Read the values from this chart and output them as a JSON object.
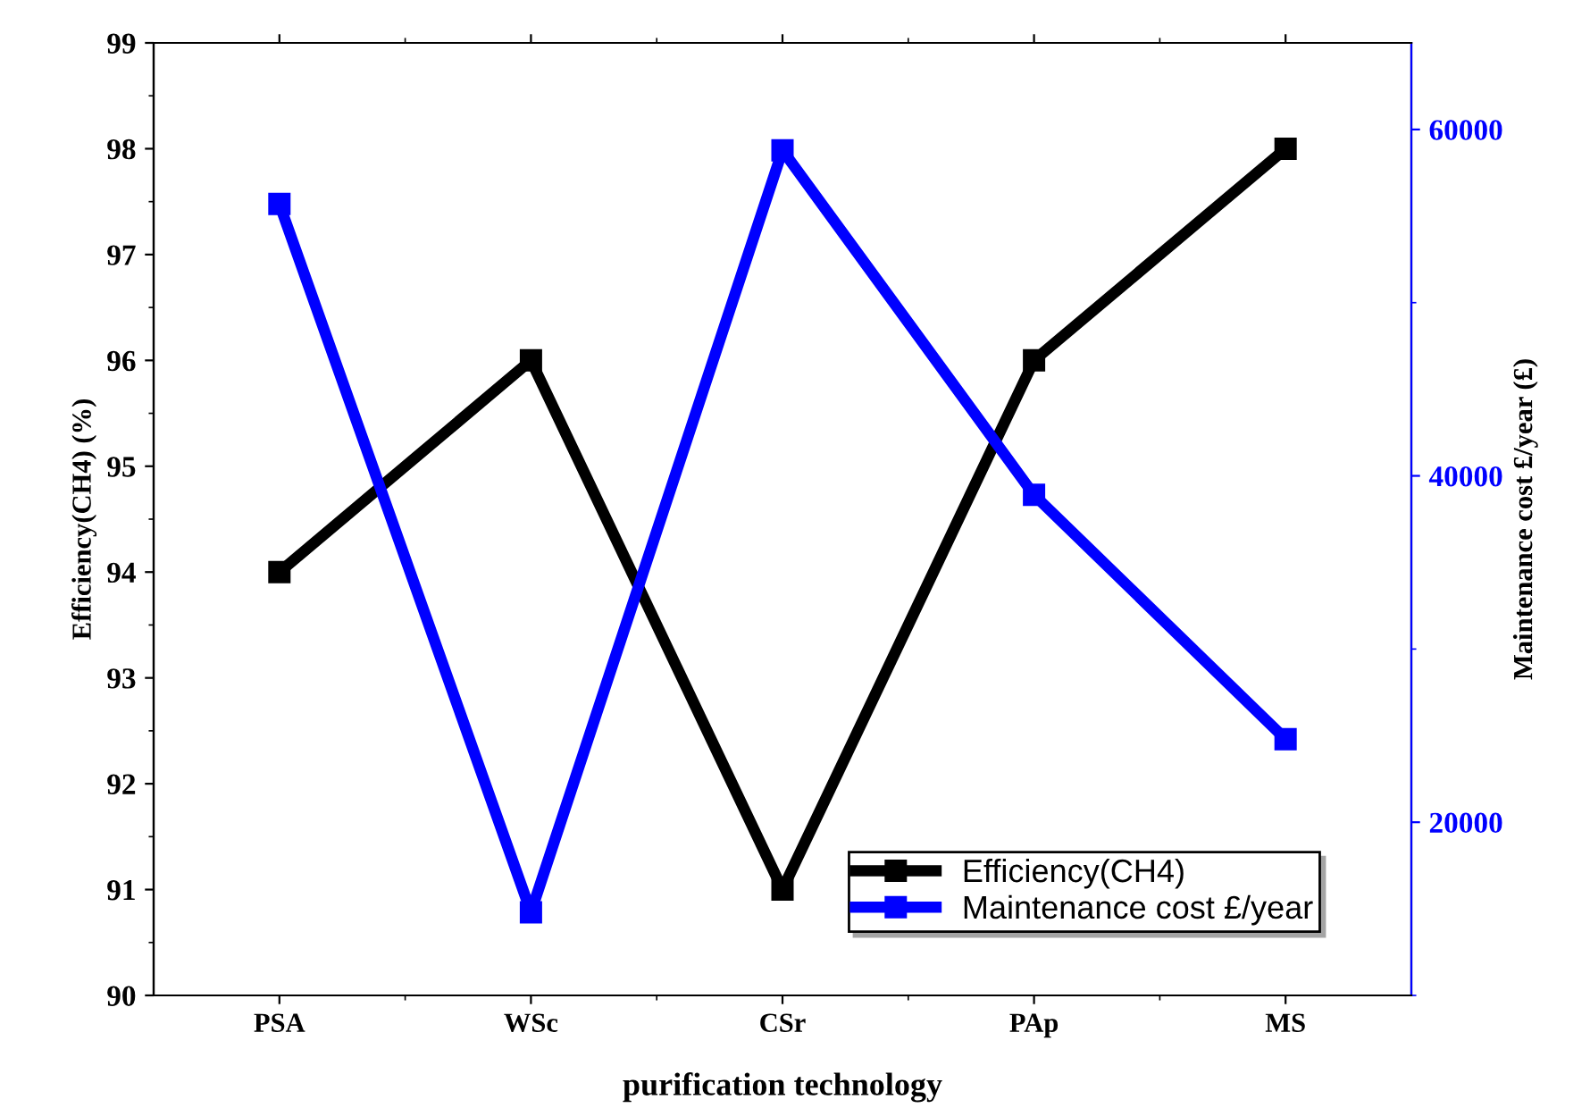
{
  "chart_data": {
    "type": "line",
    "xlabel": "purification technology",
    "ylabel": "Efficiency(CH4) (%)",
    "y2label": "Maintenance cost £/year (£)",
    "categories": [
      "PSA",
      "WSc",
      "CSr",
      "PAp",
      "MS"
    ],
    "series": [
      {
        "name": "Efficiency(CH4)",
        "color": "#000000",
        "values": [
          94,
          96,
          91,
          96,
          98
        ]
      },
      {
        "name": "Maintenance cost £/year",
        "color": "#0000ff",
        "axis": "y2",
        "values": [
          55700,
          14800,
          58800,
          38900,
          24800
        ]
      }
    ],
    "ylim": [
      90,
      99
    ],
    "yticks": [
      90,
      91,
      92,
      93,
      94,
      95,
      96,
      97,
      98,
      99
    ],
    "y2lim": [
      10000,
      65000
    ],
    "y2ticks": [
      20000,
      40000,
      60000
    ],
    "marker": "square",
    "line_style": "solid",
    "legend": "bottom right",
    "grid": false
  }
}
